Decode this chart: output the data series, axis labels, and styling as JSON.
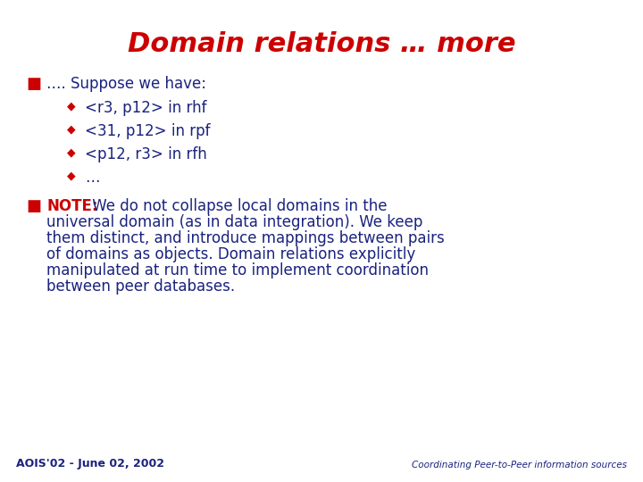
{
  "title": "Domain relations … more",
  "title_color": "#CC0000",
  "title_fontsize": 22,
  "title_style": "italic",
  "title_weight": "bold",
  "background_color": "#FFFFFF",
  "bullet_color": "#CC0000",
  "sub_bullet_color": "#CC0000",
  "body_color": "#1a237e",
  "note_label_color": "#CC0000",
  "footer_left": "AOIS'02 - June 02, 2002",
  "footer_right": "Coordinating Peer-to-Peer information sources",
  "footer_color": "#1a237e",
  "bullet1_text": "…. Suppose we have:",
  "sub_bullets": [
    "<r3, p12> in rhf",
    "<31, p12> in rpf",
    "<p12, r3> in rfh",
    "…"
  ],
  "note_label": "NOTE:",
  "note_body_line1": " We do not collapse local domains in the",
  "note_body_lines": [
    "universal domain (as in data integration). We keep",
    "them distinct, and introduce mappings between pairs",
    "of domains as objects. Domain relations explicitly",
    "manipulated at run time to implement coordination",
    "between peer databases."
  ],
  "body_fontsize": 12,
  "sub_fontsize": 12
}
